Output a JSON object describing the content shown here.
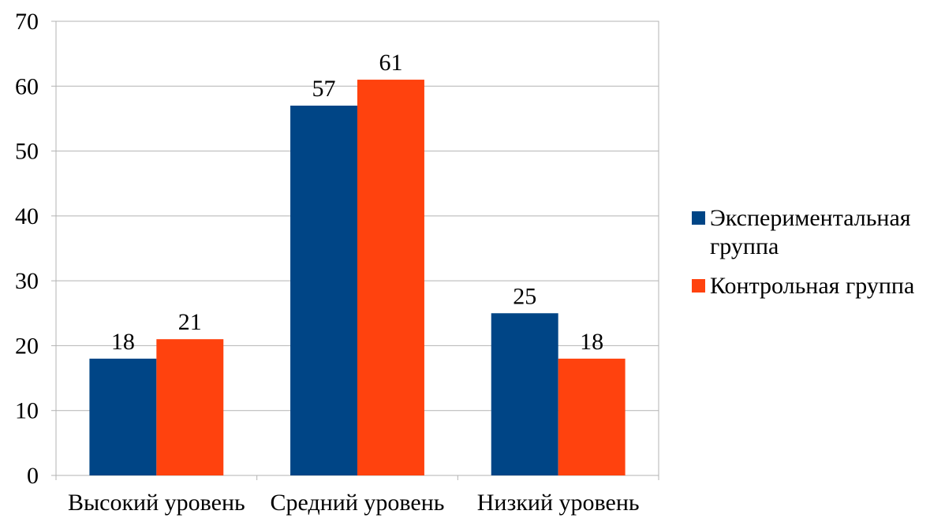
{
  "chart_data": {
    "type": "bar",
    "categories": [
      "Высокий уровень",
      "Средний уровень",
      "Низкий уровень"
    ],
    "series": [
      {
        "name": "Экспериментальная группа",
        "legend_lines": [
          "Экспериментальная",
          "группа"
        ],
        "color": "#004586",
        "values": [
          18,
          57,
          25
        ]
      },
      {
        "name": "Контрольная группа",
        "legend_lines": [
          "Контрольная группа"
        ],
        "color": "#ff420e",
        "values": [
          21,
          61,
          18
        ]
      }
    ],
    "ylim": [
      0,
      70
    ],
    "yticks": [
      0,
      10,
      20,
      30,
      40,
      50,
      60,
      70
    ],
    "grid": true,
    "legend_position": "right",
    "title": "",
    "xlabel": "",
    "ylabel": ""
  }
}
